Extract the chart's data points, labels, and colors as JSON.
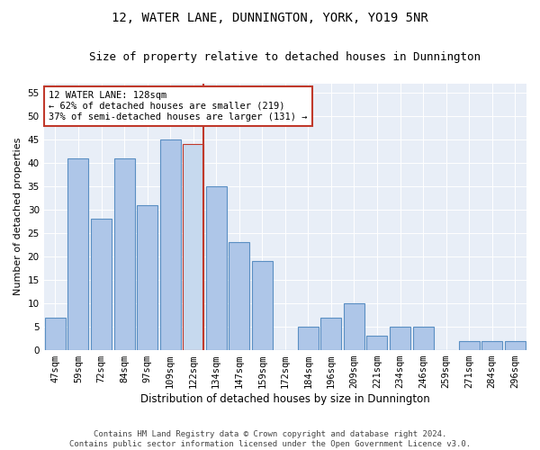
{
  "title": "12, WATER LANE, DUNNINGTON, YORK, YO19 5NR",
  "subtitle": "Size of property relative to detached houses in Dunnington",
  "xlabel": "Distribution of detached houses by size in Dunnington",
  "ylabel": "Number of detached properties",
  "categories": [
    "47sqm",
    "59sqm",
    "72sqm",
    "84sqm",
    "97sqm",
    "109sqm",
    "122sqm",
    "134sqm",
    "147sqm",
    "159sqm",
    "172sqm",
    "184sqm",
    "196sqm",
    "209sqm",
    "221sqm",
    "234sqm",
    "246sqm",
    "259sqm",
    "271sqm",
    "284sqm",
    "296sqm"
  ],
  "values": [
    7,
    41,
    28,
    41,
    31,
    45,
    44,
    35,
    23,
    19,
    0,
    5,
    7,
    10,
    3,
    5,
    5,
    0,
    2,
    2,
    2
  ],
  "bar_color": "#aec6e8",
  "bar_edge_color": "#5a8fc3",
  "highlight_bar_index": 6,
  "highlight_bar_color": "#c6d9ee",
  "highlight_bar_edge_color": "#c0392b",
  "vline_color": "#c0392b",
  "annotation_line1": "12 WATER LANE: 128sqm",
  "annotation_line2": "← 62% of detached houses are smaller (219)",
  "annotation_line3": "37% of semi-detached houses are larger (131) →",
  "annotation_box_color": "#ffffff",
  "annotation_box_edge": "#c0392b",
  "ylim": [
    0,
    57
  ],
  "yticks": [
    0,
    5,
    10,
    15,
    20,
    25,
    30,
    35,
    40,
    45,
    50,
    55
  ],
  "background_color": "#e8eef7",
  "footer": "Contains HM Land Registry data © Crown copyright and database right 2024.\nContains public sector information licensed under the Open Government Licence v3.0.",
  "title_fontsize": 10,
  "subtitle_fontsize": 9,
  "xlabel_fontsize": 8.5,
  "ylabel_fontsize": 8,
  "tick_fontsize": 7.5,
  "annotation_fontsize": 7.5,
  "footer_fontsize": 6.5
}
